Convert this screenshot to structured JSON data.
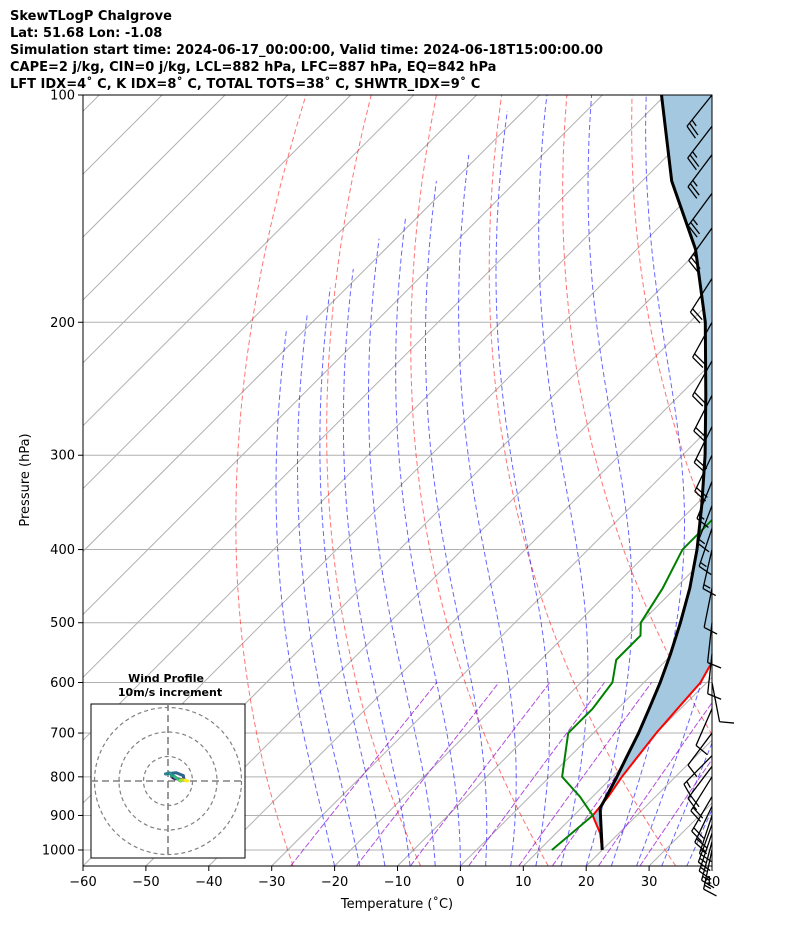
{
  "header": {
    "line1": "SkewTLogP Chalgrove",
    "line2": "Lat: 51.68   Lon: -1.08",
    "line3": "Simulation start time: 2024-06-17_00:00:00, Valid time: 2024-06-18T15:00:00.00",
    "line4": "CAPE=2 j/kg, CIN=0 j/kg, LCL=882 hPa, LFC=887 hPa, EQ=842 hPa",
    "line5": "LFT IDX=4˚ C, K IDX=8˚ C, TOTAL TOTS=38˚ C, SHWTR_IDX=9˚ C"
  },
  "chart_data": {
    "type": "line",
    "subtype": "skew-T log-P",
    "xlabel": "Temperature (˚C)",
    "ylabel": "Pressure (hPa)",
    "xlim": [
      -60,
      40
    ],
    "ylim_hpa": [
      1050,
      100
    ],
    "x_ticks": [
      "−60",
      "−50",
      "−40",
      "−30",
      "−20",
      "−10",
      "0",
      "10",
      "20",
      "30",
      "40"
    ],
    "y_ticks": [
      "100",
      "200",
      "300",
      "400",
      "500",
      "600",
      "700",
      "800",
      "900",
      "1000"
    ],
    "y_scale": "log",
    "grid": true,
    "series": [
      {
        "name": "",
        "role": "temperature",
        "color": "#ff0000",
        "points": [
          [
            20,
            1000
          ],
          [
            17,
            950
          ],
          [
            13,
            900
          ],
          [
            12.5,
            850
          ],
          [
            11.5,
            800
          ],
          [
            10,
            700
          ],
          [
            9.5,
            650
          ],
          [
            9,
            600
          ],
          [
            7,
            550
          ],
          [
            4,
            500
          ],
          [
            0,
            450
          ],
          [
            -4,
            400
          ],
          [
            -8,
            360
          ],
          [
            -11,
            330
          ],
          [
            -13,
            300
          ],
          [
            -14,
            280
          ],
          [
            -12,
            260
          ],
          [
            -12,
            240
          ],
          [
            -10,
            220
          ],
          [
            -8,
            200
          ],
          [
            -5,
            185
          ],
          [
            -2,
            170
          ],
          [
            1,
            160
          ],
          [
            4,
            145
          ],
          [
            5,
            135
          ],
          [
            6,
            125
          ],
          [
            8,
            117
          ],
          [
            10,
            110
          ],
          [
            13,
            100
          ]
        ]
      },
      {
        "name": "",
        "role": "dewpoint",
        "color": "#008000",
        "points": [
          [
            12,
            1000
          ],
          [
            13,
            900
          ],
          [
            8,
            850
          ],
          [
            2,
            800
          ],
          [
            -4,
            700
          ],
          [
            -4,
            650
          ],
          [
            -5,
            600
          ],
          [
            -8,
            560
          ],
          [
            -8,
            520
          ],
          [
            -10,
            500
          ],
          [
            -12,
            450
          ],
          [
            -15,
            400
          ],
          [
            -15,
            360
          ],
          [
            -14,
            330
          ],
          [
            -15,
            300
          ],
          [
            -18,
            280
          ],
          [
            -22,
            260
          ],
          [
            -26,
            230
          ],
          [
            -31,
            200
          ],
          [
            -36,
            187
          ],
          [
            -33,
            170
          ],
          [
            -30,
            150
          ],
          [
            -26,
            130
          ],
          [
            -22,
            110
          ],
          [
            -19,
            100
          ]
        ]
      },
      {
        "name": "",
        "role": "parcel",
        "color": "#000000",
        "points": [
          [
            20,
            1000
          ],
          [
            13,
            880
          ],
          [
            12.2,
            850
          ],
          [
            10.7,
            800
          ],
          [
            9,
            750
          ],
          [
            7.2,
            700
          ],
          [
            5,
            650
          ],
          [
            2.6,
            600
          ],
          [
            -0.3,
            550
          ],
          [
            -3.7,
            500
          ],
          [
            -7.7,
            450
          ],
          [
            -12.7,
            400
          ],
          [
            -18.9,
            350
          ],
          [
            -26.4,
            300
          ],
          [
            -35.8,
            250
          ],
          [
            -47.5,
            200
          ],
          [
            -60.7,
            160
          ],
          [
            -75.3,
            130
          ],
          [
            -90.6,
            100
          ]
        ]
      }
    ],
    "cape_shading": "#a3c8e0",
    "wind_barbs": {
      "levels_hpa": [
        1000,
        975,
        950,
        925,
        900,
        875,
        850,
        800,
        775,
        750,
        700,
        650,
        600,
        550,
        500,
        450,
        400,
        375,
        350,
        325,
        300,
        275,
        250,
        225,
        200,
        175,
        150,
        135,
        120,
        110,
        100
      ],
      "u_ms": [
        1.5,
        2.1,
        2.7,
        2.9,
        2.8,
        4,
        5.3,
        5.6,
        6.5,
        6.2,
        3.3,
        2,
        -1,
        0.5,
        0.5,
        1,
        1.5,
        2.2,
        2.8,
        3,
        4.2,
        4.8,
        5.1,
        5.3,
        5.2,
        5.9,
        6.8,
        7,
        7.2,
        7.5,
        8
      ],
      "v_ms": [
        7,
        7.8,
        8,
        8,
        8.5,
        8.4,
        9,
        9,
        8.6,
        6.3,
        4.4,
        4.6,
        5.2,
        4.6,
        4.5,
        5,
        6.5,
        6.5,
        7.2,
        7.4,
        8.8,
        9.7,
        10,
        9.5,
        9.4,
        9.2,
        9.5,
        9.5,
        9.6,
        9.8,
        10
      ]
    },
    "hodograph": {
      "title": "Wind Profile",
      "subtitle": "10m/s increment",
      "ring_ms": [
        10,
        20,
        30
      ]
    }
  }
}
